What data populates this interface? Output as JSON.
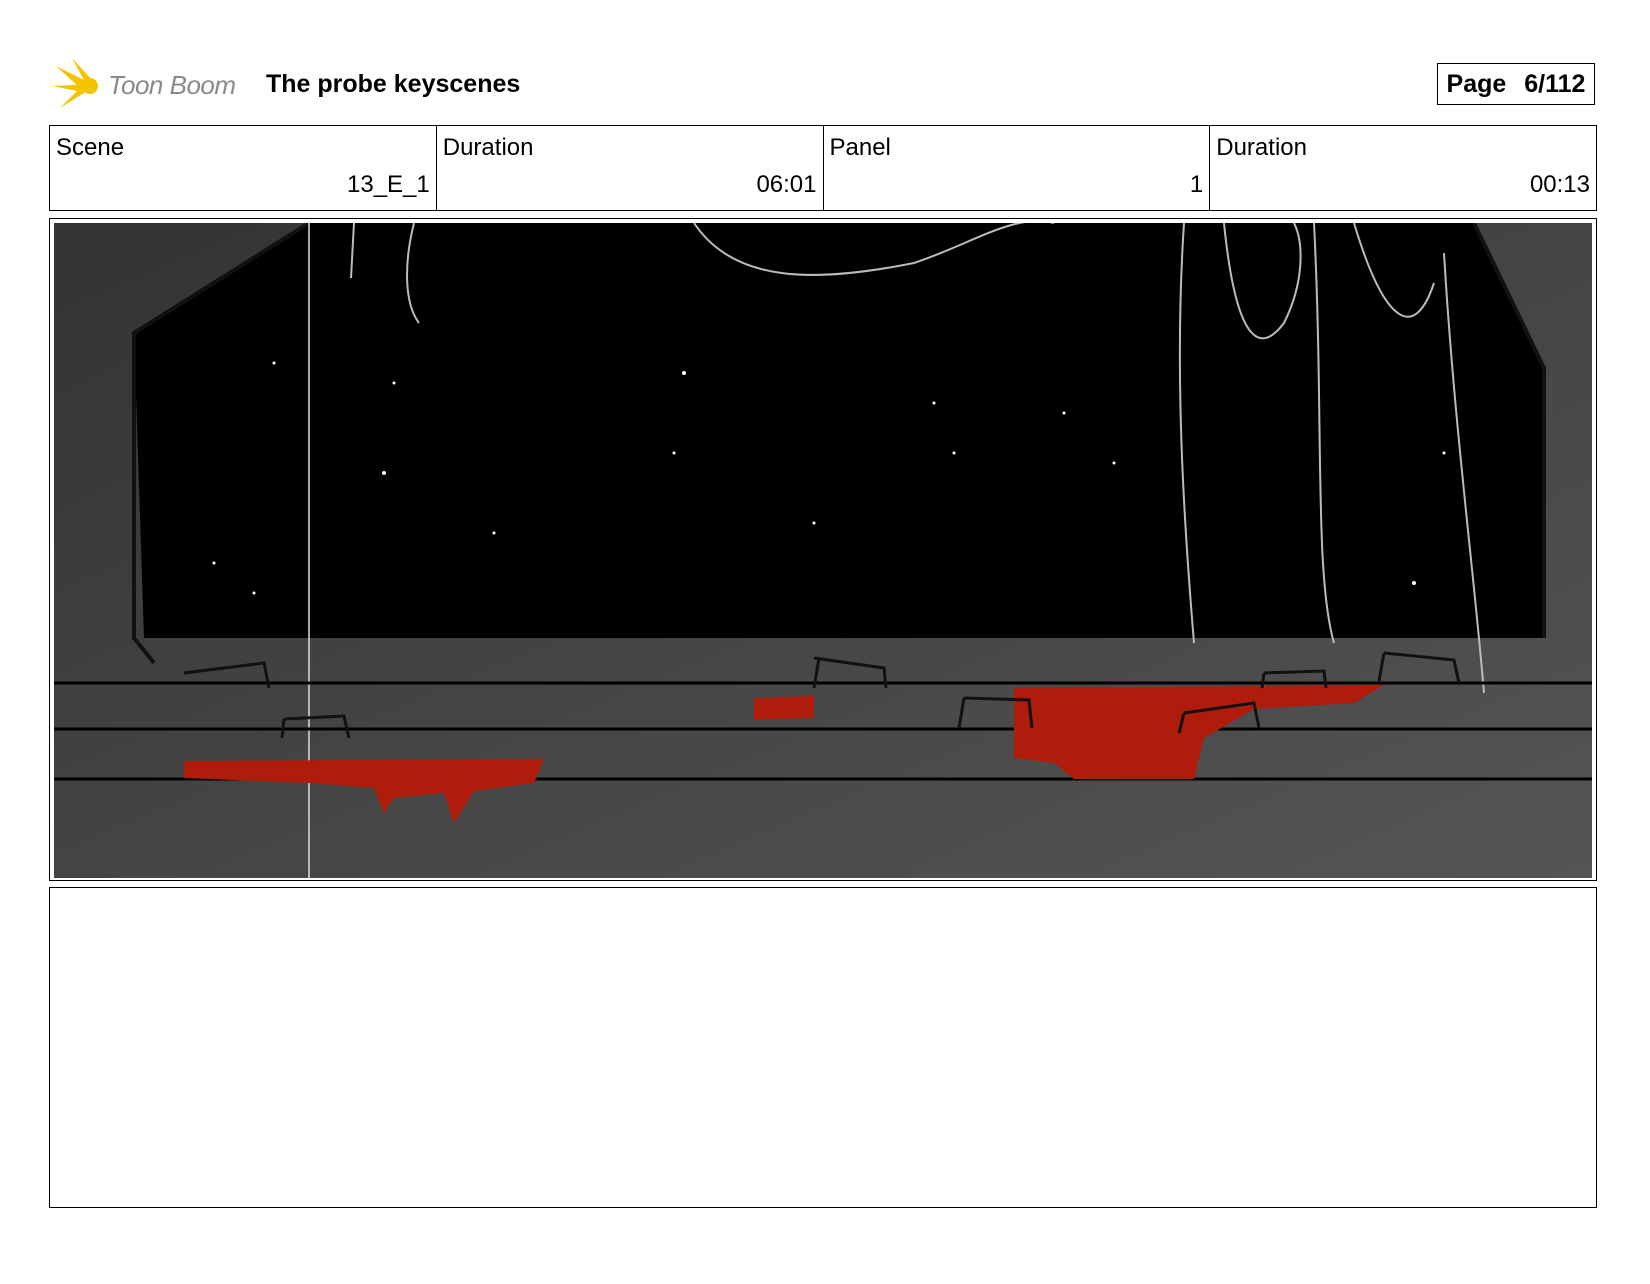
{
  "header": {
    "logo_text": "Toon Boom",
    "title": "The probe keyscenes",
    "page_label": "Page",
    "page_value": "6/112"
  },
  "info": [
    {
      "label": "Scene",
      "value": "13_E_1"
    },
    {
      "label": "Duration",
      "value": "06:01"
    },
    {
      "label": "Panel",
      "value": "1"
    },
    {
      "label": "Duration",
      "value": "00:13"
    }
  ],
  "colors": {
    "blood": "#b01c0c",
    "floor": "#3e3e3e",
    "sky": "#000000"
  },
  "notes": ""
}
